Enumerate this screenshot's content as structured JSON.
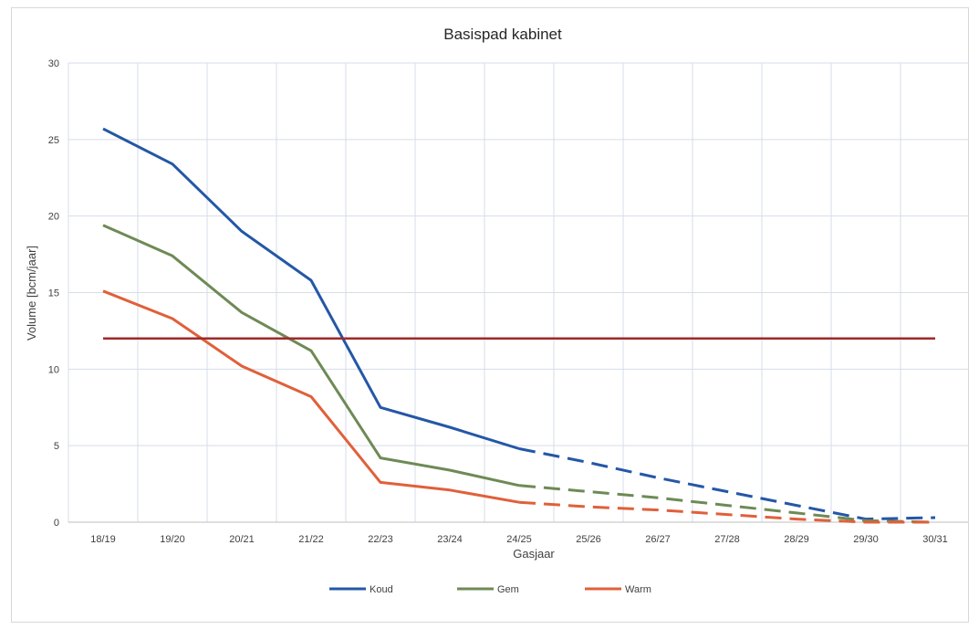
{
  "chart_data": {
    "type": "line",
    "title": "Basispad kabinet",
    "xlabel": "Gasjaar",
    "ylabel": "Volume [bcm/jaar]",
    "ylim": [
      0,
      30
    ],
    "yticks": [
      0,
      5,
      10,
      15,
      20,
      25,
      30
    ],
    "categories": [
      "18/19",
      "19/20",
      "20/21",
      "21/22",
      "22/23",
      "23/24",
      "24/25",
      "25/26",
      "26/27",
      "27/28",
      "28/29",
      "29/30",
      "30/31"
    ],
    "grid": true,
    "legend_position": "bottom",
    "series": [
      {
        "name": "Koud",
        "color": "#2457a6",
        "values": [
          25.7,
          23.4,
          19.0,
          15.8,
          7.5,
          6.2,
          4.8,
          3.9,
          2.9,
          2.0,
          1.1,
          0.2,
          0.3
        ],
        "dashed_from_index": 6
      },
      {
        "name": "Gem",
        "color": "#6e8a55",
        "values": [
          19.4,
          17.4,
          13.7,
          11.2,
          4.2,
          3.4,
          2.4,
          2.0,
          1.6,
          1.1,
          0.6,
          0.1,
          0.0
        ],
        "dashed_from_index": 6
      },
      {
        "name": "Warm",
        "color": "#e0603a",
        "values": [
          15.1,
          13.3,
          10.2,
          8.2,
          2.6,
          2.1,
          1.3,
          1.0,
          0.8,
          0.5,
          0.2,
          0.0,
          0.0
        ],
        "dashed_from_index": 6
      },
      {
        "color": "#9e2a2a",
        "values": [
          12,
          12,
          12,
          12,
          12,
          12,
          12,
          12,
          12,
          12,
          12,
          12,
          12
        ]
      }
    ]
  }
}
